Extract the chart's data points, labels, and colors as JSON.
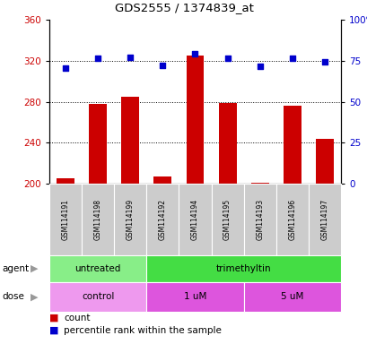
{
  "title": "GDS2555 / 1374839_at",
  "samples": [
    "GSM114191",
    "GSM114198",
    "GSM114199",
    "GSM114192",
    "GSM114194",
    "GSM114195",
    "GSM114193",
    "GSM114196",
    "GSM114197"
  ],
  "counts": [
    205,
    278,
    285,
    207,
    325,
    279,
    201,
    276,
    244
  ],
  "percentile_ranks": [
    70.5,
    76.5,
    77.0,
    72.0,
    79.0,
    76.5,
    71.5,
    76.5,
    74.5
  ],
  "ylim_left": [
    200,
    360
  ],
  "ylim_right": [
    0,
    100
  ],
  "yticks_left": [
    200,
    240,
    280,
    320,
    360
  ],
  "yticks_right": [
    0,
    25,
    50,
    75,
    100
  ],
  "bar_color": "#cc0000",
  "dot_color": "#0000cc",
  "agent_groups": [
    {
      "label": "untreated",
      "start": 0,
      "end": 3,
      "color": "#88ee88"
    },
    {
      "label": "trimethyltin",
      "start": 3,
      "end": 9,
      "color": "#44dd44"
    }
  ],
  "dose_groups": [
    {
      "label": "control",
      "start": 0,
      "end": 3,
      "color": "#ee99ee"
    },
    {
      "label": "1 uM",
      "start": 3,
      "end": 6,
      "color": "#dd55dd"
    },
    {
      "label": "5 uM",
      "start": 6,
      "end": 9,
      "color": "#dd55dd"
    }
  ],
  "legend_count_color": "#cc0000",
  "legend_dot_color": "#0000cc",
  "left_axis_color": "#cc0000",
  "right_axis_color": "#0000cc",
  "background_color": "#ffffff",
  "plot_bg_color": "#ffffff",
  "grid_color": "#000000",
  "tick_label_bg": "#cccccc",
  "arrow_color": "#999999"
}
